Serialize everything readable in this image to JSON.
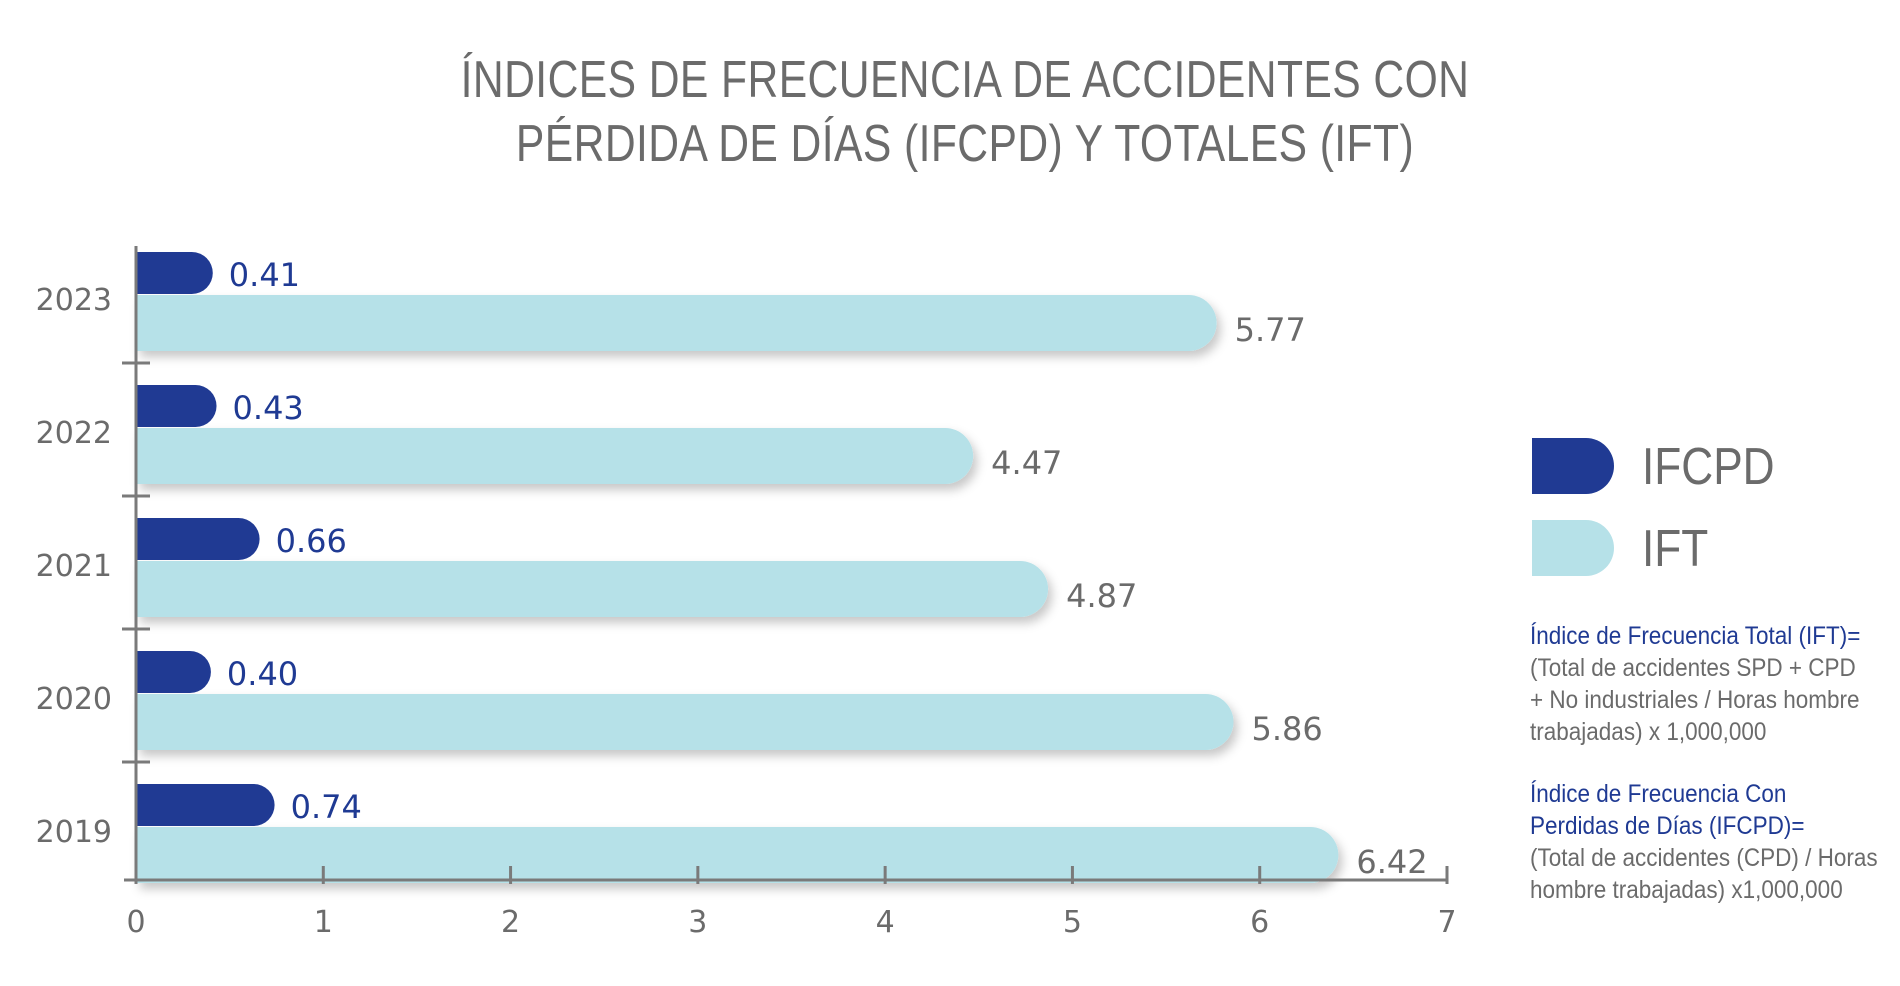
{
  "colors": {
    "ifcpd": "#203a93",
    "ift": "#b6e1e8",
    "axis": "#7a7a7a",
    "text": "#6b6b6b"
  },
  "chart_data": {
    "type": "bar",
    "orientation": "horizontal",
    "title_lines": [
      "ÍNDICES DE FRECUENCIA DE ACCIDENTES CON",
      "PÉRDIDA DE DÍAS (IFCPD) Y TOTALES (IFT)"
    ],
    "categories": [
      "2023",
      "2022",
      "2021",
      "2020",
      "2019"
    ],
    "series": [
      {
        "name": "IFCPD",
        "values": [
          0.41,
          0.43,
          0.66,
          0.4,
          0.74
        ],
        "labels": [
          "0.41",
          "0.43",
          "0.66",
          "0.40",
          "0.74"
        ]
      },
      {
        "name": "IFT",
        "values": [
          5.77,
          4.47,
          4.87,
          5.86,
          6.42
        ],
        "labels": [
          "5.77",
          "4.47",
          "4.87",
          "5.86",
          "6.42"
        ]
      }
    ],
    "xlim": [
      0,
      7
    ],
    "xticks": [
      "0",
      "1",
      "2",
      "3",
      "4",
      "5",
      "6",
      "7"
    ],
    "grid": false,
    "legend_position": "right"
  },
  "legend": [
    {
      "label": "IFCPD",
      "color_key": "ifcpd"
    },
    {
      "label": "IFT",
      "color_key": "ift"
    }
  ],
  "notes": [
    {
      "heading": "Índice de Frecuencia Total (IFT)=",
      "lines": [
        "(Total de accidentes SPD + CPD",
        "+ No industriales / Horas hombre",
        "trabajadas) x 1,000,000"
      ]
    },
    {
      "heading_lines": [
        "Índice de Frecuencia Con",
        "Perdidas de Días (IFCPD)="
      ],
      "lines": [
        "(Total de accidentes (CPD) / Horas",
        "hombre trabajadas) x1,000,000"
      ]
    }
  ]
}
